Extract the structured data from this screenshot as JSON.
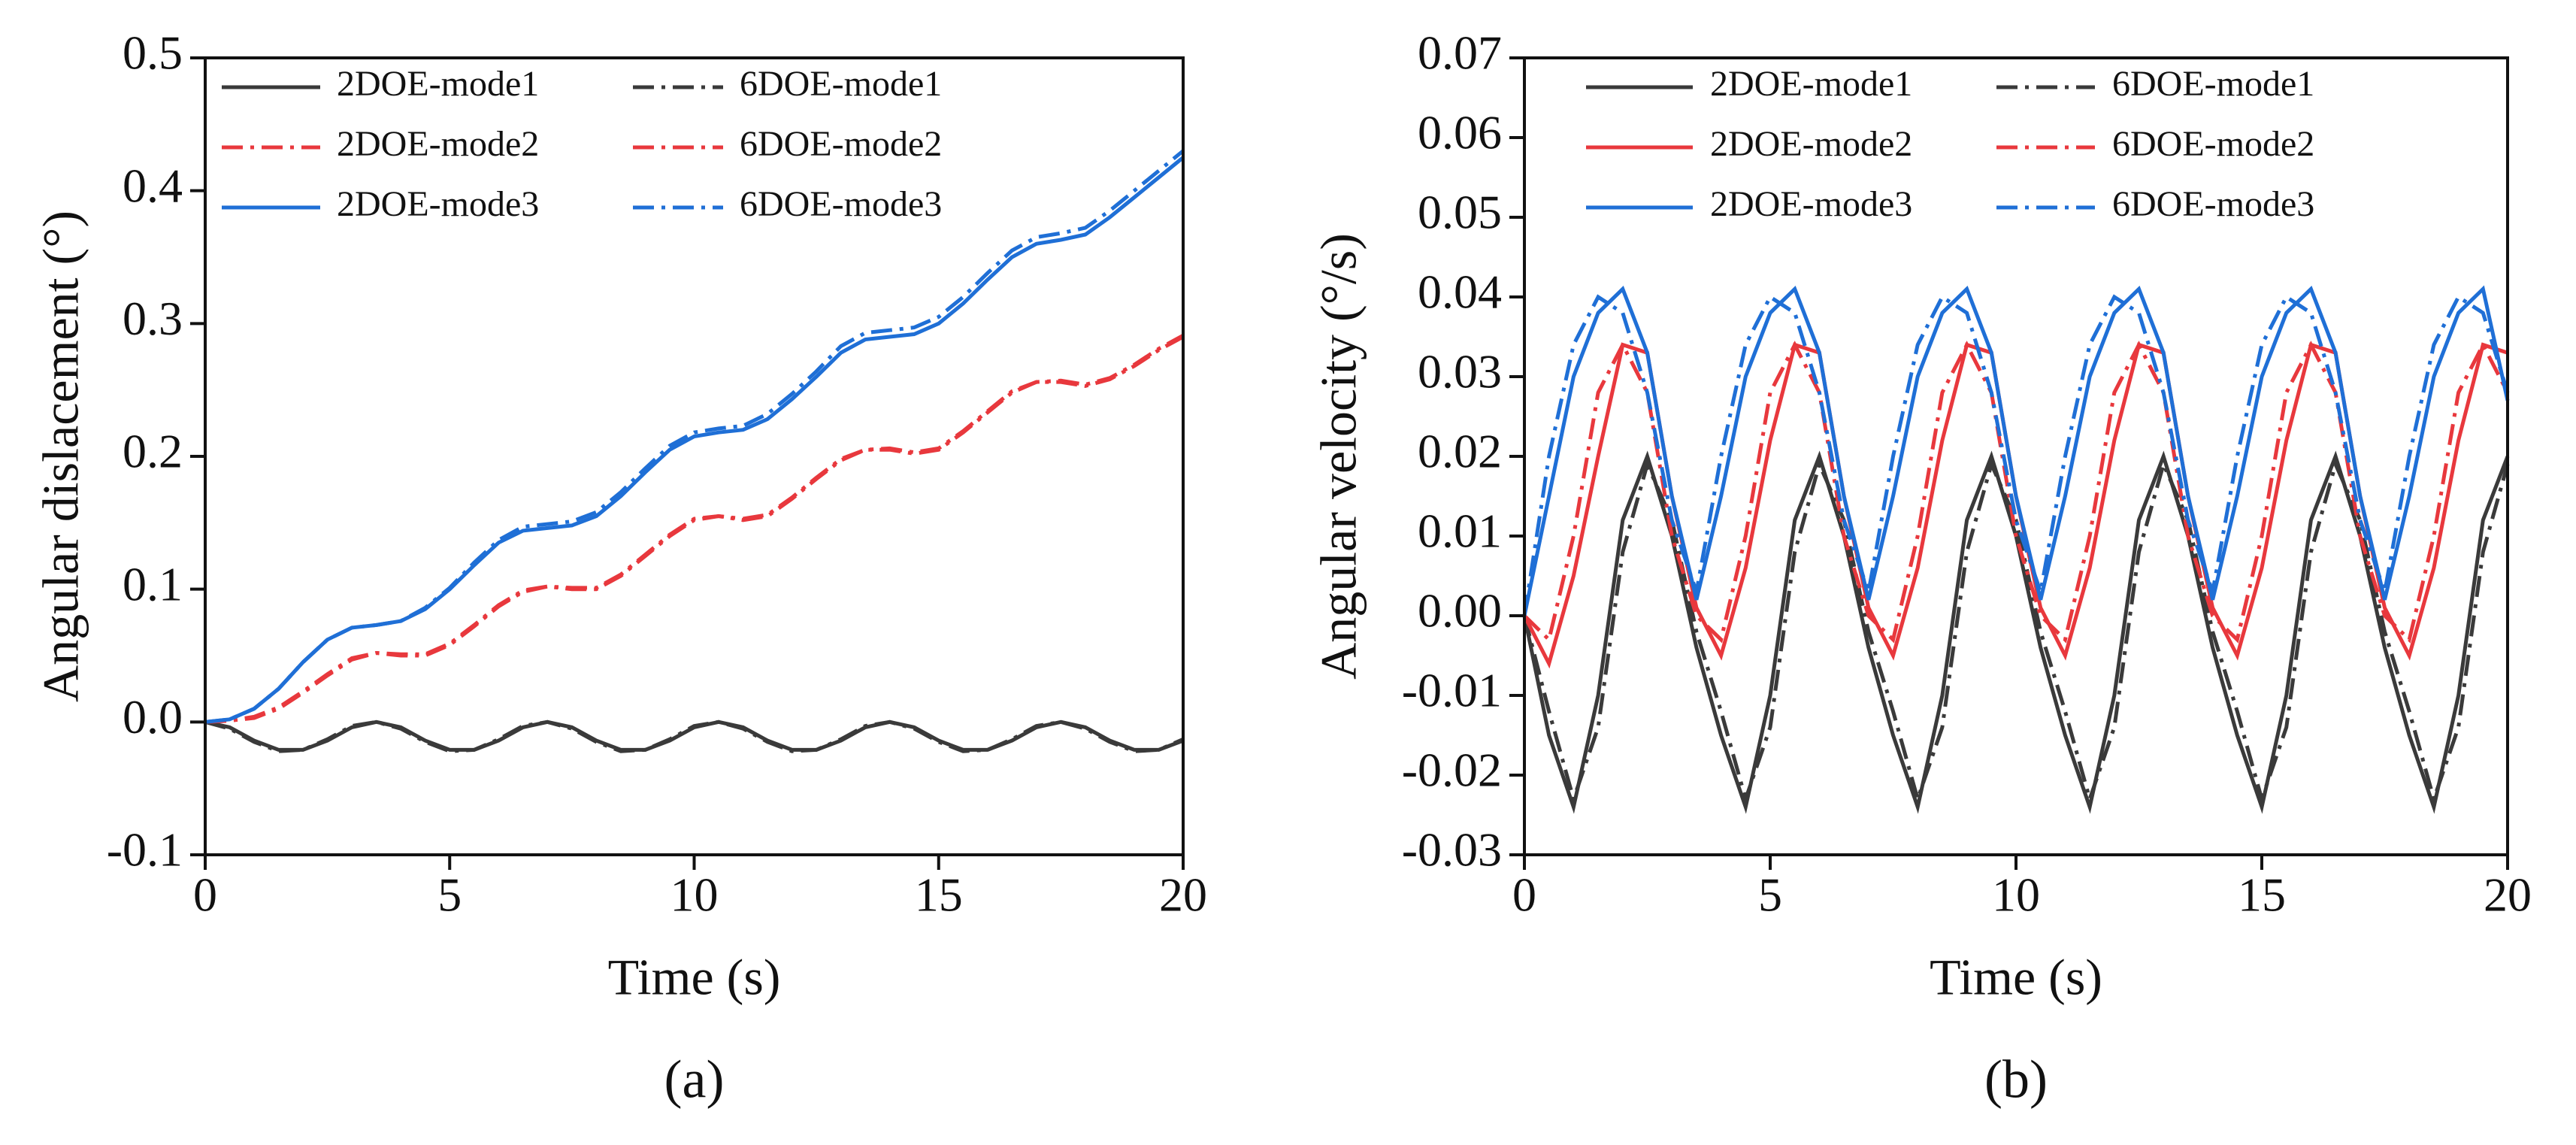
{
  "chart_data": [
    {
      "type": "line",
      "subtitle": "(a)",
      "xlabel": "Time (s)",
      "ylabel": "Angular dislacement (°)",
      "xlim": [
        0,
        20
      ],
      "xticks": [
        0,
        5,
        10,
        15,
        20
      ],
      "ylim": [
        -0.1,
        0.5
      ],
      "yticks": [
        -0.1,
        {
          "value": 0,
          "label": "0.0"
        },
        0.1,
        0.2,
        0.3,
        0.4,
        0.5
      ],
      "x": [
        0,
        0.5,
        1,
        1.5,
        2,
        2.5,
        3,
        3.5,
        4,
        4.5,
        5,
        5.5,
        6,
        6.5,
        7,
        7.5,
        8,
        8.5,
        9,
        9.5,
        10,
        10.5,
        11,
        11.5,
        12,
        12.5,
        13,
        13.5,
        14,
        14.5,
        15,
        15.5,
        16,
        16.5,
        17,
        17.5,
        18,
        18.5,
        19,
        19.5,
        20
      ],
      "series": [
        {
          "name": "2DOE-mode1",
          "color": "#3a3a3a",
          "style": "solid",
          "values": [
            0,
            -0.004,
            -0.014,
            -0.021,
            -0.021,
            -0.014,
            -0.004,
            0,
            -0.004,
            -0.014,
            -0.021,
            -0.021,
            -0.014,
            -0.004,
            0,
            -0.004,
            -0.014,
            -0.021,
            -0.021,
            -0.014,
            -0.004,
            0,
            -0.004,
            -0.014,
            -0.021,
            -0.021,
            -0.014,
            -0.004,
            0,
            -0.004,
            -0.014,
            -0.021,
            -0.021,
            -0.014,
            -0.004,
            0,
            -0.004,
            -0.014,
            -0.021,
            -0.021,
            -0.014
          ]
        },
        {
          "name": "6DOE-mode1",
          "color": "#3a3a3a",
          "style": "dashdot",
          "values": [
            0,
            -0.005,
            -0.015,
            -0.022,
            -0.021,
            -0.013,
            -0.003,
            0,
            -0.005,
            -0.015,
            -0.022,
            -0.021,
            -0.013,
            -0.003,
            0,
            -0.005,
            -0.015,
            -0.022,
            -0.021,
            -0.013,
            -0.003,
            0,
            -0.005,
            -0.015,
            -0.022,
            -0.021,
            -0.013,
            -0.003,
            0,
            -0.005,
            -0.015,
            -0.022,
            -0.021,
            -0.013,
            -0.003,
            0,
            -0.005,
            -0.015,
            -0.022,
            -0.021,
            -0.013
          ]
        },
        {
          "name": "2DOE-mode2",
          "color": "#e8383d",
          "style": "dashdot",
          "values": [
            0,
            0.001,
            0.003,
            0.01,
            0.022,
            0.035,
            0.047,
            0.052,
            0.05,
            0.05,
            0.058,
            0.072,
            0.087,
            0.098,
            0.102,
            0.1,
            0.1,
            0.11,
            0.125,
            0.14,
            0.152,
            0.155,
            0.152,
            0.155,
            0.168,
            0.183,
            0.197,
            0.205,
            0.205,
            0.202,
            0.205,
            0.218,
            0.233,
            0.248,
            0.256,
            0.256,
            0.253,
            0.258,
            0.268,
            0.28,
            0.29
          ]
        },
        {
          "name": "6DOE-mode2",
          "color": "#e8383d",
          "style": "dashdot",
          "values": [
            0,
            0.001,
            0.004,
            0.011,
            0.023,
            0.036,
            0.048,
            0.052,
            0.051,
            0.051,
            0.059,
            0.073,
            0.088,
            0.099,
            0.102,
            0.101,
            0.101,
            0.111,
            0.126,
            0.141,
            0.153,
            0.155,
            0.153,
            0.156,
            0.169,
            0.184,
            0.198,
            0.205,
            0.206,
            0.203,
            0.206,
            0.219,
            0.234,
            0.249,
            0.256,
            0.257,
            0.254,
            0.259,
            0.269,
            0.281,
            0.291
          ]
        },
        {
          "name": "2DOE-mode3",
          "color": "#1f6fd6",
          "style": "solid",
          "values": [
            0,
            0.002,
            0.01,
            0.025,
            0.045,
            0.062,
            0.071,
            0.073,
            0.076,
            0.085,
            0.1,
            0.118,
            0.135,
            0.144,
            0.146,
            0.148,
            0.155,
            0.17,
            0.188,
            0.205,
            0.215,
            0.218,
            0.22,
            0.228,
            0.243,
            0.26,
            0.278,
            0.288,
            0.29,
            0.292,
            0.3,
            0.315,
            0.333,
            0.35,
            0.36,
            0.363,
            0.367,
            0.38,
            0.395,
            0.41,
            0.425
          ]
        },
        {
          "name": "6DOE-mode3",
          "color": "#1f6fd6",
          "style": "dashdot",
          "values": [
            0,
            0.002,
            0.01,
            0.025,
            0.045,
            0.062,
            0.071,
            0.073,
            0.076,
            0.086,
            0.101,
            0.12,
            0.137,
            0.147,
            0.149,
            0.151,
            0.158,
            0.173,
            0.191,
            0.208,
            0.218,
            0.221,
            0.223,
            0.232,
            0.247,
            0.264,
            0.283,
            0.293,
            0.295,
            0.297,
            0.305,
            0.32,
            0.338,
            0.355,
            0.365,
            0.368,
            0.372,
            0.385,
            0.4,
            0.415,
            0.43
          ]
        }
      ]
    },
    {
      "type": "line",
      "subtitle": "(b)",
      "xlabel": "Time (s)",
      "ylabel": "Angular velocity (°/s)",
      "xlim": [
        0,
        20
      ],
      "xticks": [
        0,
        5,
        10,
        15,
        20
      ],
      "ylim": [
        -0.03,
        0.07
      ],
      "yticks": [
        -0.03,
        -0.02,
        -0.01,
        {
          "value": 0,
          "label": "0.00"
        },
        0.01,
        0.02,
        0.03,
        0.04,
        0.05,
        0.06,
        0.07
      ],
      "x": [
        0,
        0.5,
        1,
        1.5,
        2,
        2.5,
        3,
        3.5,
        4,
        4.5,
        5,
        5.5,
        6,
        6.5,
        7,
        7.5,
        8,
        8.5,
        9,
        9.5,
        10,
        10.5,
        11,
        11.5,
        12,
        12.5,
        13,
        13.5,
        14,
        14.5,
        15,
        15.5,
        16,
        16.5,
        17,
        17.5,
        18,
        18.5,
        19,
        19.5,
        20
      ],
      "series": [
        {
          "name": "2DOE-mode1",
          "color": "#3a3a3a",
          "style": "solid",
          "values": [
            0,
            -0.015,
            -0.024,
            -0.01,
            0.012,
            0.02,
            0.01,
            -0.004,
            -0.015,
            -0.024,
            -0.01,
            0.012,
            0.02,
            0.01,
            -0.004,
            -0.015,
            -0.024,
            -0.01,
            0.012,
            0.02,
            0.01,
            -0.004,
            -0.015,
            -0.024,
            -0.01,
            0.012,
            0.02,
            0.01,
            -0.004,
            -0.015,
            -0.024,
            -0.01,
            0.012,
            0.02,
            0.01,
            -0.004,
            -0.015,
            -0.024,
            -0.01,
            0.012,
            0.02
          ]
        },
        {
          "name": "6DOE-mode1",
          "color": "#3a3a3a",
          "style": "dashdot",
          "values": [
            0,
            -0.012,
            -0.023,
            -0.014,
            0.008,
            0.019,
            0.012,
            -0.002,
            -0.012,
            -0.023,
            -0.014,
            0.008,
            0.019,
            0.012,
            -0.002,
            -0.012,
            -0.023,
            -0.014,
            0.008,
            0.019,
            0.012,
            -0.002,
            -0.012,
            -0.023,
            -0.014,
            0.008,
            0.019,
            0.012,
            -0.002,
            -0.012,
            -0.023,
            -0.014,
            0.008,
            0.019,
            0.012,
            -0.002,
            -0.012,
            -0.023,
            -0.014,
            0.008,
            0.019
          ]
        },
        {
          "name": "2DOE-mode2",
          "color": "#e8383d",
          "style": "solid",
          "values": [
            0,
            -0.006,
            0.005,
            0.02,
            0.034,
            0.033,
            0.015,
            0.001,
            -0.005,
            0.006,
            0.022,
            0.034,
            0.033,
            0.015,
            0.001,
            -0.005,
            0.006,
            0.022,
            0.034,
            0.033,
            0.015,
            0.001,
            -0.005,
            0.006,
            0.022,
            0.034,
            0.033,
            0.015,
            0.001,
            -0.005,
            0.006,
            0.022,
            0.034,
            0.033,
            0.015,
            0.001,
            -0.005,
            0.006,
            0.022,
            0.034,
            0.033
          ]
        },
        {
          "name": "6DOE-mode2",
          "color": "#e8383d",
          "style": "dashdot",
          "values": [
            0,
            -0.003,
            0.01,
            0.028,
            0.034,
            0.028,
            0.01,
            0,
            -0.003,
            0.01,
            0.028,
            0.034,
            0.028,
            0.01,
            0,
            -0.003,
            0.01,
            0.028,
            0.034,
            0.028,
            0.01,
            0,
            -0.003,
            0.01,
            0.028,
            0.034,
            0.028,
            0.01,
            0,
            -0.003,
            0.01,
            0.028,
            0.034,
            0.028,
            0.01,
            0,
            -0.003,
            0.01,
            0.028,
            0.034,
            0.028
          ]
        },
        {
          "name": "2DOE-mode3",
          "color": "#1f6fd6",
          "style": "solid",
          "values": [
            0,
            0.015,
            0.03,
            0.038,
            0.041,
            0.033,
            0.015,
            0.002,
            0.015,
            0.03,
            0.038,
            0.041,
            0.033,
            0.015,
            0.002,
            0.015,
            0.03,
            0.038,
            0.041,
            0.033,
            0.015,
            0.002,
            0.015,
            0.03,
            0.038,
            0.041,
            0.033,
            0.015,
            0.002,
            0.015,
            0.03,
            0.038,
            0.041,
            0.033,
            0.015,
            0.002,
            0.015,
            0.03,
            0.038,
            0.041,
            0.027
          ]
        },
        {
          "name": "6DOE-mode3",
          "color": "#1f6fd6",
          "style": "dashdot",
          "values": [
            0,
            0.02,
            0.034,
            0.04,
            0.038,
            0.028,
            0.012,
            0.003,
            0.02,
            0.034,
            0.04,
            0.038,
            0.028,
            0.012,
            0.003,
            0.02,
            0.034,
            0.04,
            0.038,
            0.028,
            0.012,
            0.003,
            0.02,
            0.034,
            0.04,
            0.038,
            0.028,
            0.012,
            0.003,
            0.02,
            0.034,
            0.04,
            0.038,
            0.028,
            0.012,
            0.003,
            0.02,
            0.034,
            0.04,
            0.038,
            0.028
          ]
        }
      ]
    }
  ]
}
